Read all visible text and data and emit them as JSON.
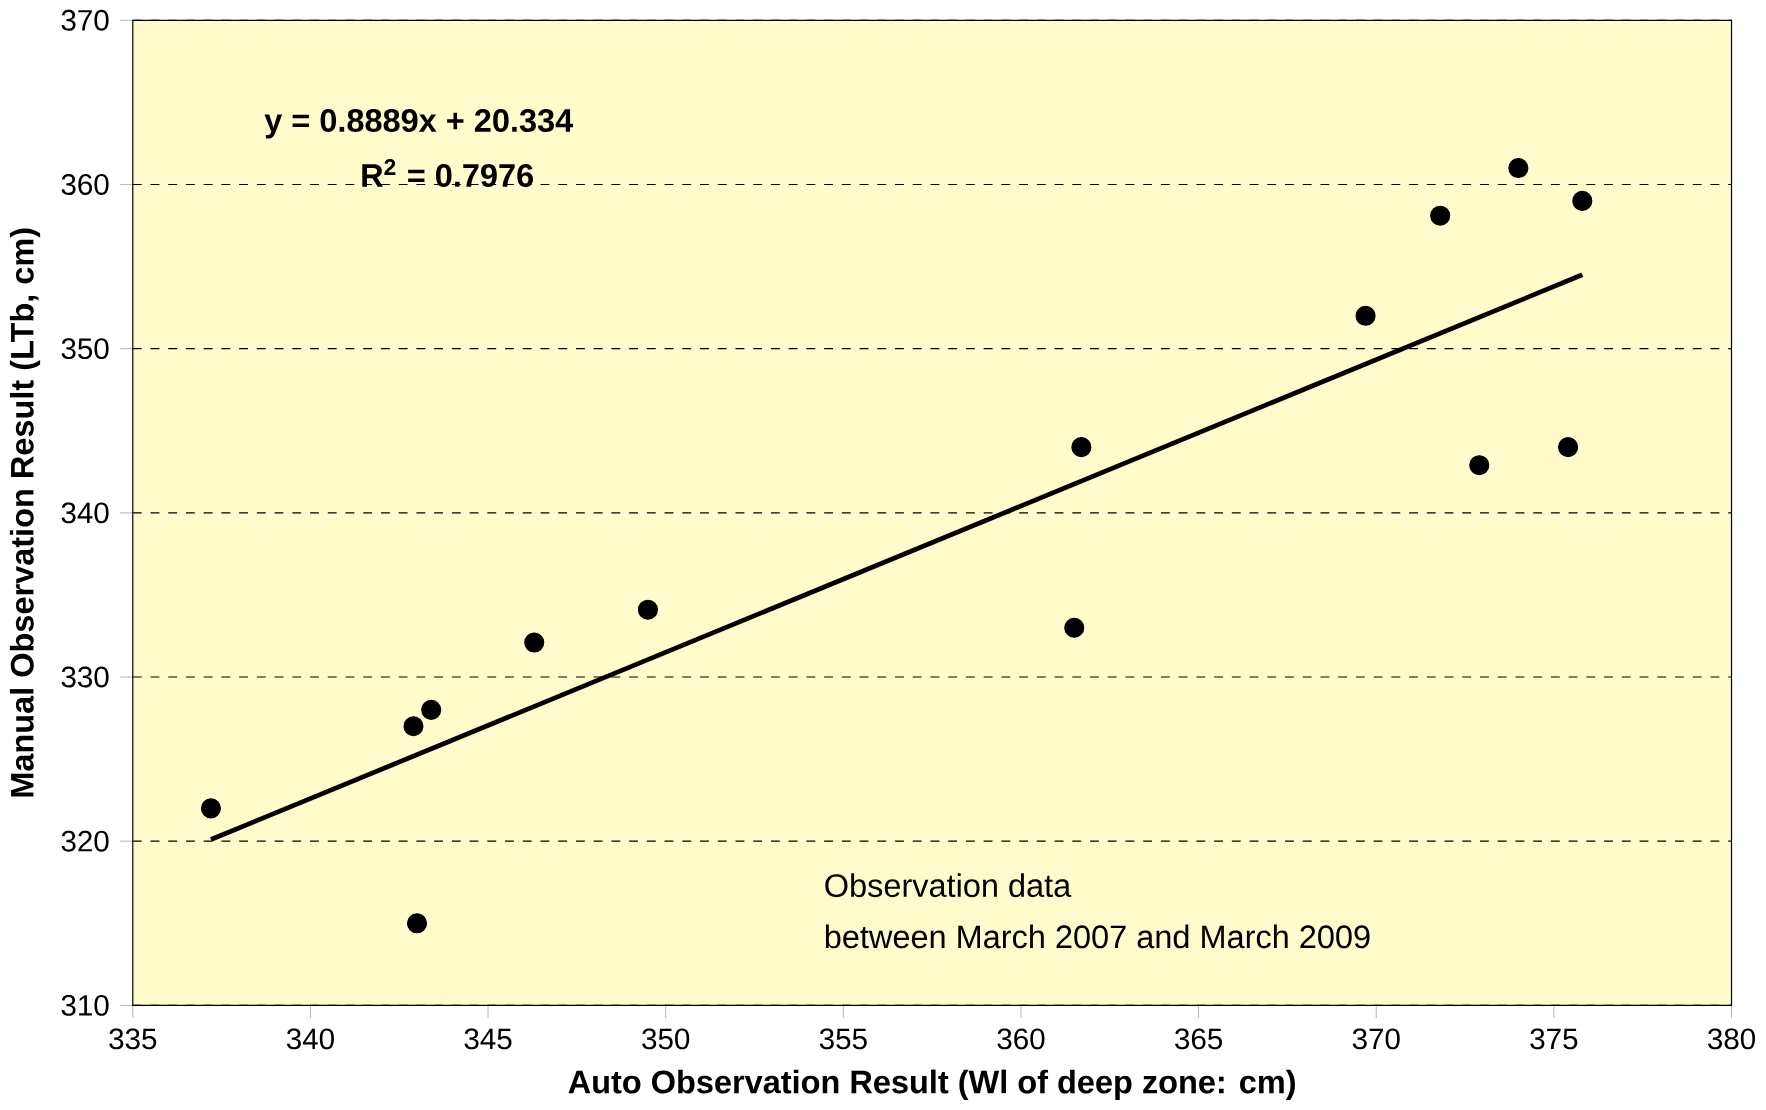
{
  "chart_data": {
    "type": "scatter",
    "xlabel": "Auto Observation Result (Wl of deep zone: cm)",
    "ylabel": "Manual Observation Result (LTb, cm)",
    "xlim": [
      335,
      380
    ],
    "xticks": [
      335,
      340,
      345,
      350,
      355,
      360,
      365,
      370,
      375,
      380
    ],
    "ylim": [
      310,
      370
    ],
    "yticks": [
      310,
      320,
      330,
      340,
      350,
      360,
      370
    ],
    "grid": "y",
    "series": [
      {
        "marker": "circle",
        "color": "#000000",
        "x": [
          337.2,
          342.9,
          343.4,
          343.0,
          346.3,
          349.5,
          361.5,
          361.7,
          369.7,
          371.8,
          372.9,
          374.0,
          375.4,
          375.8
        ],
        "values": [
          322.0,
          327.0,
          328.0,
          315.0,
          332.1,
          334.1,
          333.0,
          344.0,
          352.0,
          358.1,
          342.9,
          361.0,
          344.0,
          359.0
        ]
      },
      {
        "type": "line",
        "marker": "none",
        "color": "#000000",
        "x": [
          337.2,
          375.8
        ],
        "values": [
          320.1,
          354.5
        ]
      }
    ],
    "annotations": [
      "y = 0.8889x + 20.334",
      "R$^{2}$ = 0.7976",
      "Observation data",
      "between March 2007 and March 2009"
    ]
  }
}
